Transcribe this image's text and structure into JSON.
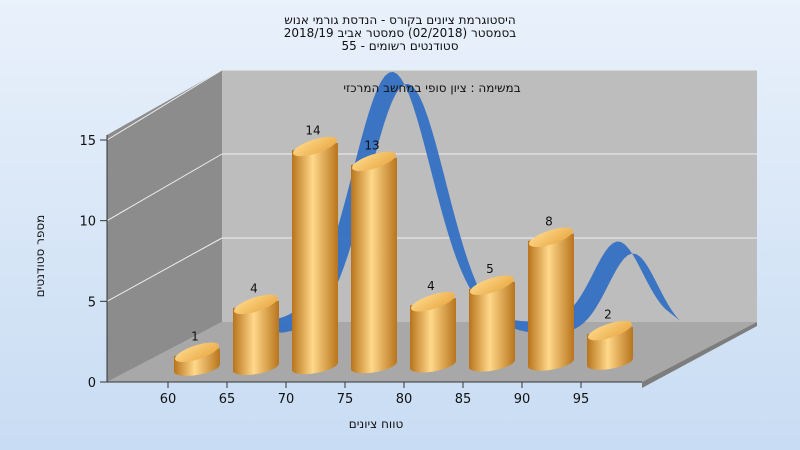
{
  "title_lines": [
    "היסטוגרמת ציונים בקורס - הנדסת גורמי אנוש",
    "בסמסטר  (02/2018)  סמסטר אביב 2018/19",
    "סטודנטים רשומים - 55"
  ],
  "colors": {
    "bar": "#e8a843",
    "bar_light": "#ffd88a",
    "bar_dark": "#b8741c",
    "curve": "#3470c2",
    "back_wall": "#bdbdbd",
    "left_wall": "#8c8c8c",
    "floor": "#a8a8a8"
  },
  "chart_data": {
    "type": "bar",
    "annotation": "במשימה : ציון סופי במחשב המרכזי",
    "xlabel": "טווח ציונים",
    "ylabel": "מספר סטודנטים",
    "categories": [
      "60",
      "65",
      "70",
      "75",
      "80",
      "85",
      "90",
      "95"
    ],
    "values": [
      1,
      4,
      14,
      13,
      4,
      5,
      8,
      2
    ],
    "yticks": [
      "0",
      "5",
      "10",
      "15"
    ],
    "ylim": [
      0,
      15
    ],
    "grid": true,
    "curve": "normal distribution (3D ribbon)"
  }
}
